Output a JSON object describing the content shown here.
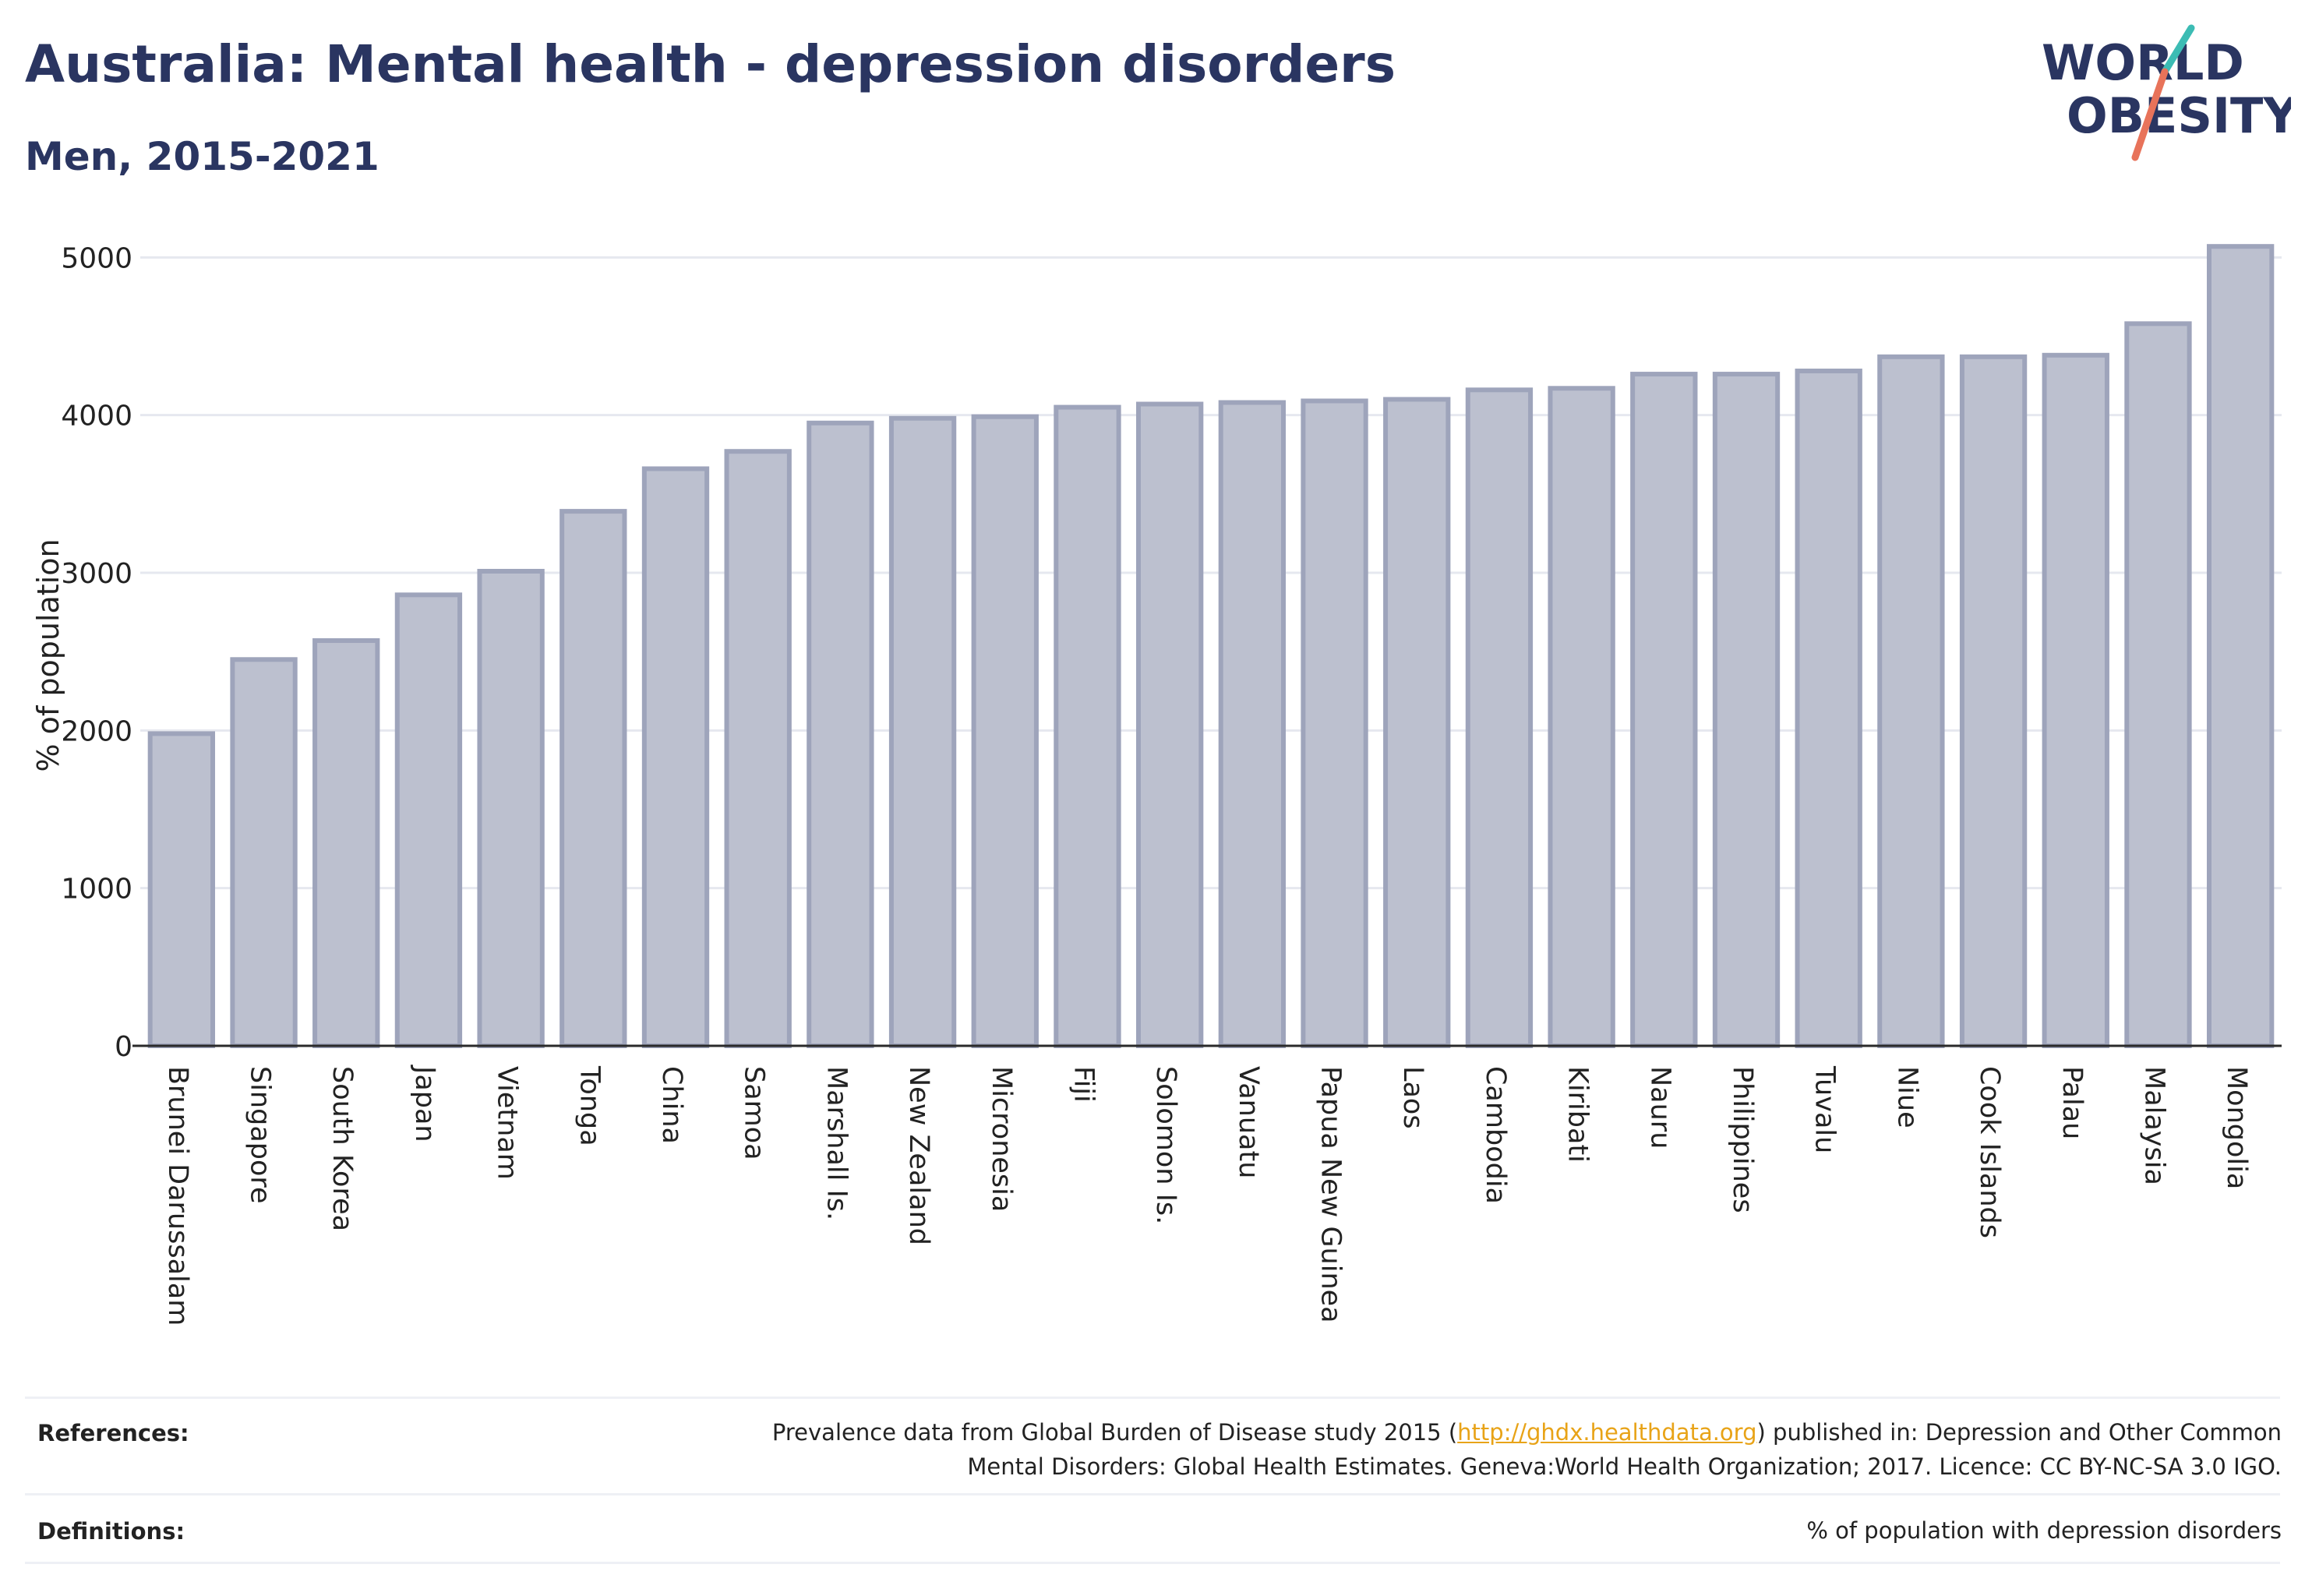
{
  "header": {
    "title": "Australia: Mental health - depression disorders",
    "subtitle": "Men, 2015-2021"
  },
  "logo": {
    "line1": "WORLD",
    "line2": "OBESITY",
    "colors": {
      "text": "#2a3561",
      "slash_teal": "#3cbcb4",
      "slash_coral": "#e8735a"
    }
  },
  "chart_data": {
    "type": "bar",
    "title": "",
    "xlabel": "",
    "ylabel": "% of population",
    "ylim": [
      0,
      5150
    ],
    "yticks": [
      0,
      1000,
      2000,
      3000,
      4000,
      5000
    ],
    "grid": true,
    "legend": "none",
    "bar_color": "#bcc0cf",
    "bar_edge_color": "#9ea4bb",
    "categories": [
      "Brunei Darussalam",
      "Singapore",
      "South Korea",
      "Japan",
      "Vietnam",
      "Tonga",
      "China",
      "Samoa",
      "Marshall Is.",
      "New Zealand",
      "Micronesia",
      "Fiji",
      "Solomon Is.",
      "Vanuatu",
      "Papua New Guinea",
      "Laos",
      "Cambodia",
      "Kiribati",
      "Nauru",
      "Philippines",
      "Tuvalu",
      "Niue",
      "Cook Islands",
      "Palau",
      "Malaysia",
      "Mongolia"
    ],
    "values": [
      1980,
      2450,
      2570,
      2860,
      3010,
      3390,
      3660,
      3770,
      3950,
      3980,
      3990,
      4050,
      4070,
      4080,
      4090,
      4100,
      4160,
      4170,
      4260,
      4260,
      4280,
      4370,
      4370,
      4380,
      4580,
      5070
    ]
  },
  "footer": {
    "references_label": "References:",
    "references_text_before": "Prevalence data from Global Burden of Disease study 2015 (",
    "references_link": "http://ghdx.healthdata.org",
    "references_text_after": ") published in: Depression and Other Common",
    "references_line2": "Mental Disorders: Global Health Estimates. Geneva:World Health Organization; 2017. Licence: CC BY-NC-SA 3.0 IGO.",
    "definitions_label": "Definitions:",
    "definitions_text": "% of population with depression disorders"
  }
}
